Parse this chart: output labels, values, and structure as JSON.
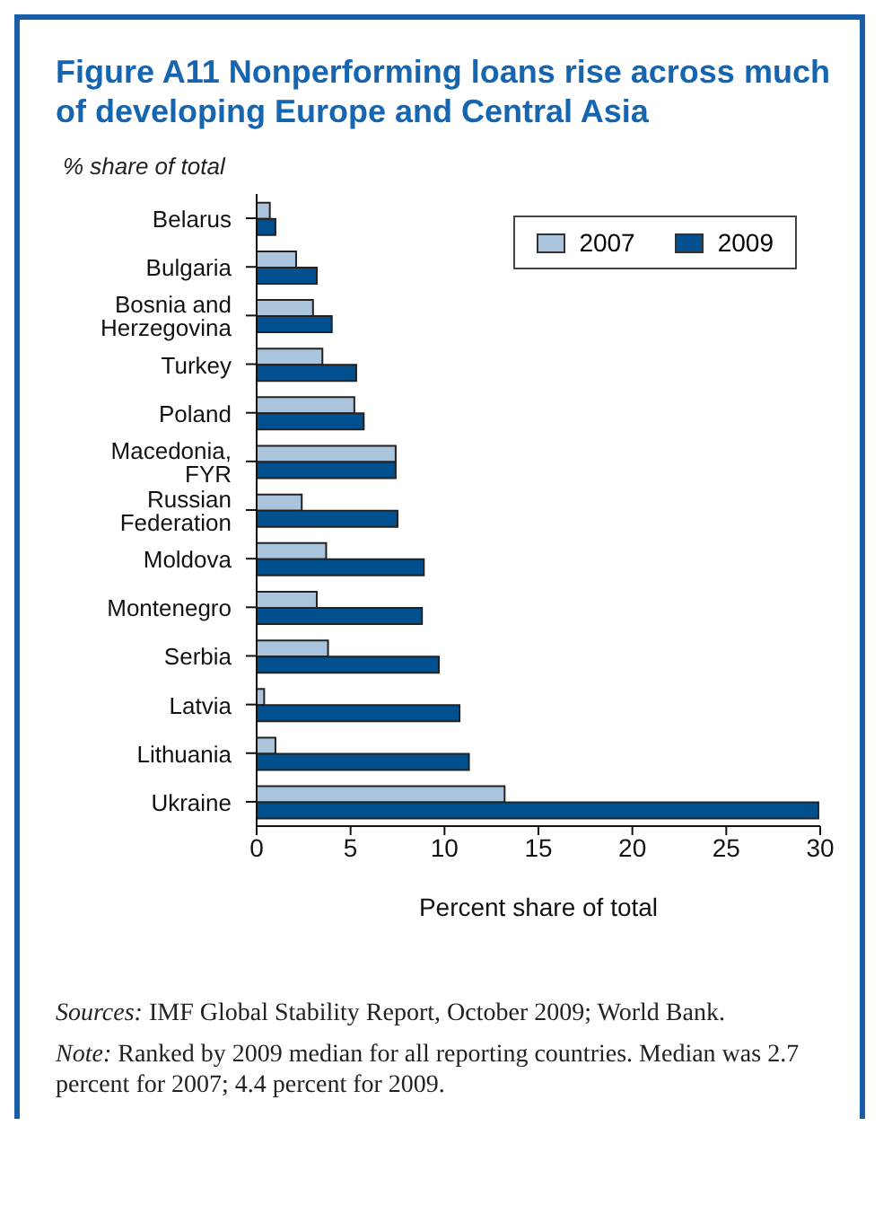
{
  "chart_data": {
    "type": "bar",
    "orientation": "horizontal",
    "title": "Figure A11  Nonperforming loans rise across much of developing Europe and Central Asia",
    "ylabel": "% share of total",
    "xlabel": "Percent share of total",
    "categories": [
      "Belarus",
      "Bulgaria",
      "Bosnia and Herzegovina",
      "Turkey",
      "Poland",
      "Macedonia, FYR",
      "Russian Federation",
      "Moldova",
      "Montenegro",
      "Serbia",
      "Latvia",
      "Lithuania",
      "Ukraine"
    ],
    "series": [
      {
        "name": "2007",
        "color": "#a9c4dc",
        "values": [
          0.7,
          2.1,
          3.0,
          3.5,
          5.2,
          7.4,
          2.4,
          3.7,
          3.2,
          3.8,
          0.4,
          1.0,
          13.2
        ]
      },
      {
        "name": "2009",
        "color": "#00508f",
        "values": [
          1.0,
          3.2,
          4.0,
          5.3,
          5.7,
          7.4,
          7.5,
          8.9,
          8.8,
          9.7,
          10.8,
          11.3,
          29.9
        ]
      }
    ],
    "xlim": [
      0,
      30
    ],
    "xticks": [
      0,
      5,
      10,
      15,
      20,
      25,
      30
    ],
    "grid": false,
    "legend": "top right",
    "annotations": [
      "Sources: IMF Global Stability Report, October 2009; World Bank.",
      "Note: Ranked by 2009 median for all reporting countries. Median was 2.7 percent for 2007; 4.4 percent for 2009."
    ]
  }
}
